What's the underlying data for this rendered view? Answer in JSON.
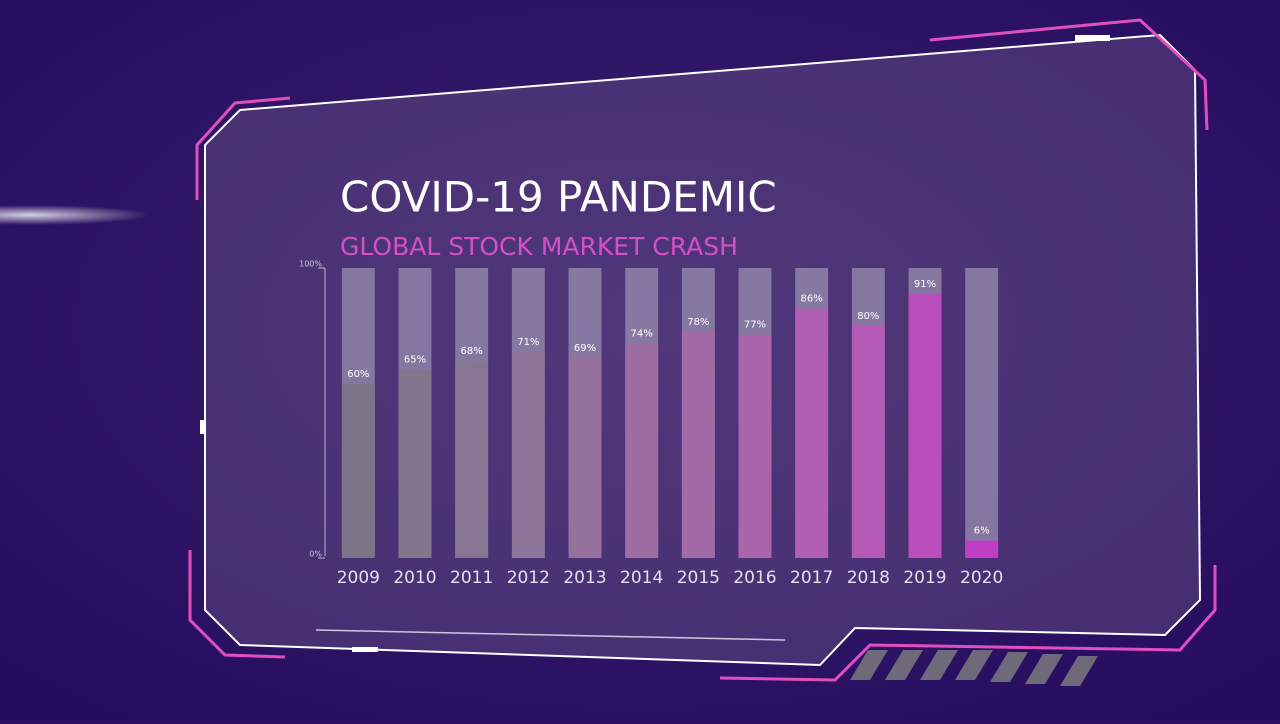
{
  "chart_data": {
    "type": "bar",
    "title": "COVID-19 PANDEMIC",
    "subtitle": "GLOBAL STOCK MARKET CRASH",
    "categories": [
      "2009",
      "2010",
      "2011",
      "2012",
      "2013",
      "2014",
      "2015",
      "2016",
      "2017",
      "2018",
      "2019",
      "2020"
    ],
    "values": [
      60,
      65,
      68,
      71,
      69,
      74,
      78,
      77,
      86,
      80,
      91,
      6
    ],
    "value_labels": [
      "60%",
      "65%",
      "68%",
      "71%",
      "69%",
      "74%",
      "78%",
      "77%",
      "86%",
      "80%",
      "91%",
      "6%"
    ],
    "colors": [
      "#7e7488",
      "#83758e",
      "#887593",
      "#8e7498",
      "#95719d",
      "#9c6ea2",
      "#a36aa8",
      "#aa65ad",
      "#b05fb2",
      "#b459b6",
      "#bb4ebd",
      "#c03ec4"
    ],
    "ylim": [
      0,
      100
    ],
    "yticks": [
      {
        "value": 0,
        "label": "0%"
      },
      {
        "value": 100,
        "label": "100%"
      }
    ]
  }
}
